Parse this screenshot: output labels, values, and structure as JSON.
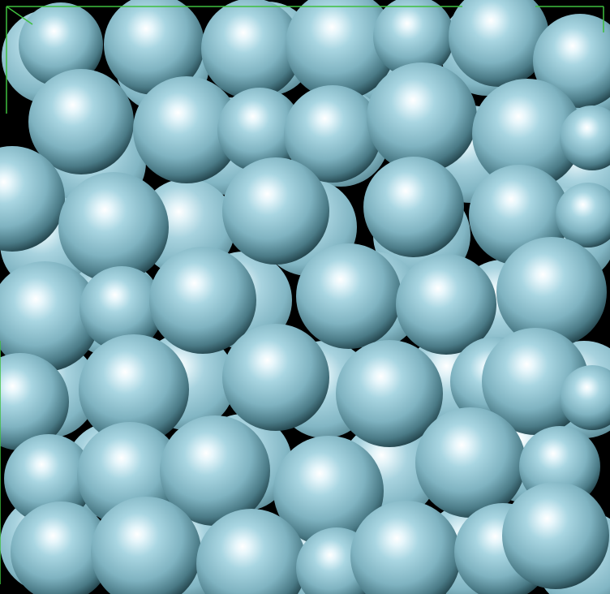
{
  "scene": {
    "subject": "packed spheres",
    "sphere_color": "#8fc4d2",
    "sphere_shadow_color": "#23444c",
    "highlight_color": "#ffffff",
    "background_color": "#000000",
    "bounding_box_color": "#3fbf3f"
  }
}
